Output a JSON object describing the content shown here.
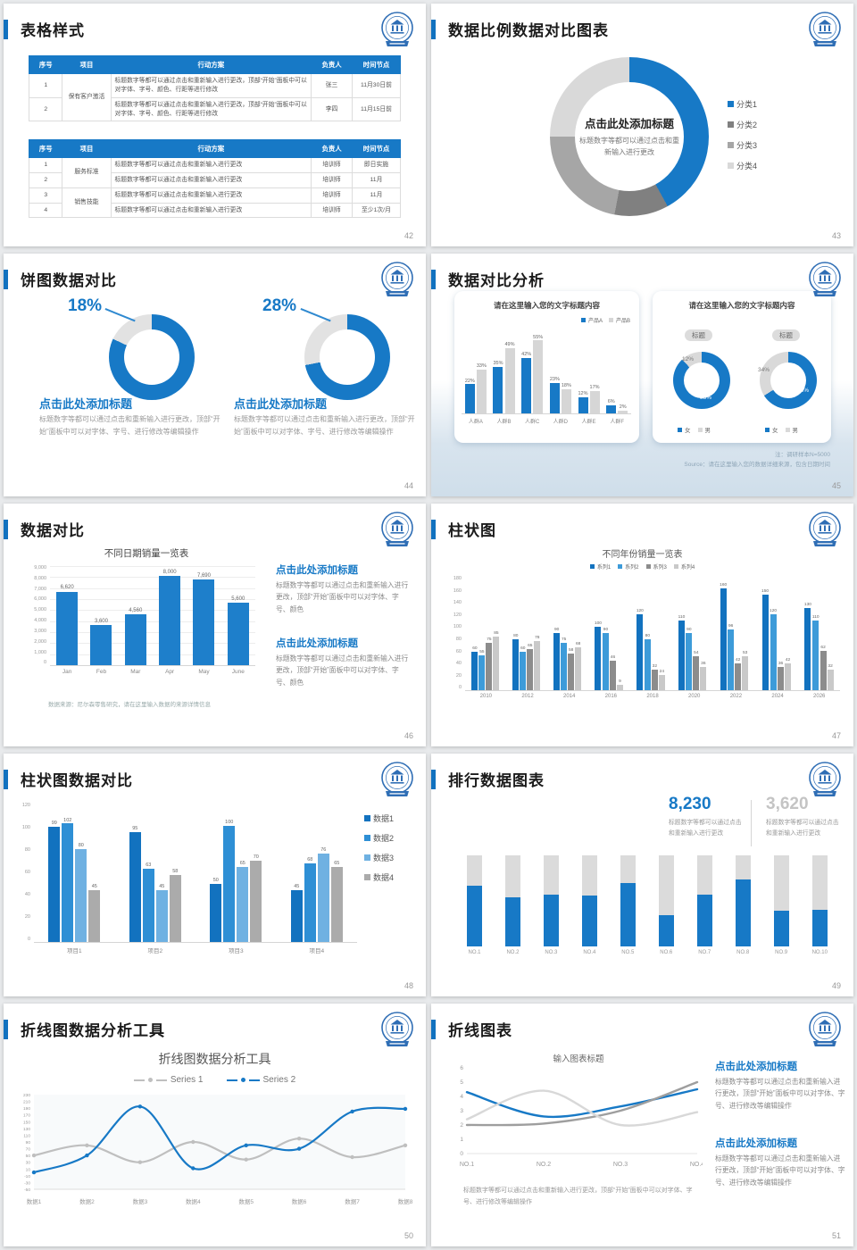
{
  "window": {
    "background": "#E8EAEC"
  },
  "colors": {
    "accent": "#1779C6",
    "blue_dark": "#1272BF",
    "blue_mid": "#2E8FD5",
    "blue_light": "#6FB1E2",
    "gray_dark": "#808080",
    "gray_mid": "#A6A6A6",
    "gray_light": "#D9D9D9",
    "stat_gray": "#C4C4C4"
  },
  "slides": {
    "s42": {
      "title": "表格样式",
      "page": "42",
      "table1": {
        "headers": [
          "序号",
          "项目",
          "行动方案",
          "负责人",
          "时间节点"
        ],
        "rows": [
          {
            "no": "1",
            "project": "保有客户激活",
            "plan": "标题数字等都可以通过点击和重新输入进行更改，顶部“开始”面板中可以对字体、字号、颜色、行距等进行修改",
            "owner": "张三",
            "time": "11月30日前"
          },
          {
            "no": "2",
            "plan": "标题数字等都可以通过点击和重新输入进行更改，顶部“开始”面板中可以对字体、字号、颜色、行距等进行修改",
            "owner": "李四",
            "time": "11月15日前"
          }
        ]
      },
      "table2": {
        "headers": [
          "序号",
          "项目",
          "行动方案",
          "负责人",
          "时间节点"
        ],
        "rows": [
          {
            "no": "1",
            "project": "服务标准",
            "plan": "标题数字等都可以通过点击和重新输入进行更改",
            "owner": "培训师",
            "time": "即日实施"
          },
          {
            "no": "2",
            "plan": "标题数字等都可以通过点击和重新输入进行更改",
            "owner": "培训师",
            "time": "11月"
          },
          {
            "no": "3",
            "project": "销售技能",
            "plan": "标题数字等都可以通过点击和重新输入进行更改",
            "owner": "培训师",
            "time": "11月"
          },
          {
            "no": "4",
            "plan": "标题数字等都可以通过点击和重新输入进行更改",
            "owner": "培训师",
            "time": "至少1次/月"
          }
        ]
      }
    },
    "s43": {
      "title": "数据比例数据对比图表",
      "page": "43"
    },
    "s44": {
      "title": "饼图数据对比",
      "page": "44",
      "left": {
        "heading": "点击此处添加标题",
        "body": "标题数字等都可以通过点击和重新输入进行更改，顶部“开始”面板中可以对字体、字号、进行修改等编辑操作"
      },
      "right": {
        "heading": "点击此处添加标题",
        "body": "标题数字等都可以通过点击和重新输入进行更改，顶部“开始”面板中可以对字体、字号、进行修改等编辑操作"
      }
    },
    "s45": {
      "title": "数据对比分析",
      "page": "45",
      "card1_title": "请在这里输入您的文字标题内容",
      "card2_title": "请在这里输入您的文字标题内容",
      "badge": "标题",
      "note1": "注：调研样本N=5000",
      "note2": "Source：请在这里输入您的数据详细来源，包含日期时间"
    },
    "s46": {
      "title": "数据对比",
      "page": "46",
      "footnote": "数据来源：尼尔森零售研究，请在这里输入数据的来源详情信息",
      "blocks": [
        {
          "heading": "点击此处添加标题",
          "body": "标题数字等都可以通过点击和重新输入进行更改，顶部“开始”面板中可以对字体、字号、颜色"
        },
        {
          "heading": "点击此处添加标题",
          "body": "标题数字等都可以通过点击和重新输入进行更改，顶部“开始”面板中可以对字体、字号、颜色"
        }
      ]
    },
    "s47": {
      "title": "柱状图",
      "page": "47"
    },
    "s48": {
      "title": "柱状图数据对比",
      "page": "48"
    },
    "s49": {
      "title": "排行数据图表",
      "page": "49",
      "stat1": {
        "value": "8,230",
        "body": "标题数字等都可以通过点击和重新输入进行更改"
      },
      "stat2": {
        "value": "3,620",
        "body": "标题数字等都可以通过点击和重新输入进行更改"
      }
    },
    "s50": {
      "title": "折线图数据分析工具",
      "page": "50",
      "chart_title": "折线图数据分析工具"
    },
    "s51": {
      "title": "折线图表",
      "page": "51",
      "bottom_note": "标题数字等都可以通过点击和重新输入进行更改，顶部“开始”面板中可以对字体、字号、进行修改等编辑操作",
      "blocks": [
        {
          "heading": "点击此处添加标题",
          "body": "标题数字等都可以通过点击和重新输入进行更改，顶部“开始”面板中可以对字体、字号、进行修改等编辑操作"
        },
        {
          "heading": "点击此处添加标题",
          "body": "标题数字等都可以通过点击和重新输入进行更改，顶部“开始”面板中可以对字体、字号、进行修改等编辑操作"
        }
      ]
    }
  },
  "chart_data": [
    {
      "id": "donut43",
      "type": "pie",
      "labels": [
        "分类1",
        "分类2",
        "分类3",
        "分类4"
      ],
      "values": [
        42,
        11,
        22,
        25
      ],
      "colors": [
        "#1779C6",
        "#808080",
        "#A6A6A6",
        "#D9D9D9"
      ],
      "legend_position": "right",
      "center_title": "点击此处添加标题",
      "center_sub": "标题数字等都可以通过点击和重新输入进行更改"
    },
    {
      "id": "donut44a",
      "type": "pie",
      "values": [
        82,
        18
      ],
      "colors": [
        "#1779C6",
        "#E2E2E2"
      ],
      "callout": "18%"
    },
    {
      "id": "donut44b",
      "type": "pie",
      "values": [
        72,
        28
      ],
      "colors": [
        "#1779C6",
        "#E2E2E2"
      ],
      "callout": "28%"
    },
    {
      "id": "bar45",
      "type": "bar",
      "title": "请在这里输入您的文字标题内容",
      "categories": [
        "人群A",
        "人群B",
        "人群C",
        "人群D",
        "人群E",
        "人群F"
      ],
      "series": [
        {
          "name": "产品A",
          "color": "#1779C6",
          "values": [
            22,
            35,
            42,
            23,
            12,
            6
          ]
        },
        {
          "name": "产品B",
          "color": "#D6D6D6",
          "values": [
            33,
            49,
            55,
            18,
            17,
            2
          ]
        }
      ],
      "unit": "%",
      "ylim": [
        0,
        62
      ]
    },
    {
      "id": "donut45a",
      "type": "pie",
      "labels": [
        "女",
        "男"
      ],
      "values": [
        88,
        12
      ],
      "colors": [
        "#1779C6",
        "#D9D9D9"
      ],
      "labels_shown": [
        "88%",
        "12%"
      ]
    },
    {
      "id": "donut45b",
      "type": "pie",
      "labels": [
        "女",
        "男"
      ],
      "values": [
        66,
        34
      ],
      "colors": [
        "#1779C6",
        "#D9D9D9"
      ],
      "labels_shown": [
        "66%",
        "34%"
      ]
    },
    {
      "id": "bar46",
      "type": "bar",
      "title": "不同日期销量一览表",
      "categories": [
        "Jan",
        "Feb",
        "Mar",
        "Apr",
        "May",
        "June"
      ],
      "values": [
        6620,
        3600,
        4560,
        8000,
        7690,
        5600
      ],
      "color": "#1E7FCB",
      "ylim": [
        0,
        9000
      ],
      "ytick_step": 1000
    },
    {
      "id": "bar47",
      "type": "bar",
      "title": "不同年份销量一览表",
      "categories": [
        "2010",
        "2012",
        "2014",
        "2016",
        "2018",
        "2020",
        "2022",
        "2024",
        "2026"
      ],
      "series": [
        {
          "name": "系列1",
          "color": "#1272BF",
          "values": [
            60,
            80,
            90,
            100,
            120,
            110,
            160,
            150,
            130
          ]
        },
        {
          "name": "系列2",
          "color": "#3D9BD9",
          "values": [
            55,
            60,
            75,
            90,
            80,
            90,
            96,
            120,
            110
          ]
        },
        {
          "name": "系列3",
          "color": "#8C8C8C",
          "values": [
            75,
            65,
            58,
            46,
            32,
            54,
            42,
            36,
            62
          ]
        },
        {
          "name": "系列4",
          "color": "#C9C9C9",
          "values": [
            85,
            78,
            68,
            9,
            24,
            36,
            53,
            42,
            32
          ]
        }
      ],
      "ylim": [
        0,
        180
      ],
      "ytick_step": 20
    },
    {
      "id": "bar48",
      "type": "bar",
      "categories": [
        "项目1",
        "项目2",
        "项目3",
        "项目4"
      ],
      "series": [
        {
          "name": "数据1",
          "color": "#1272BF",
          "values": [
            99,
            95,
            50,
            45
          ]
        },
        {
          "name": "数据2",
          "color": "#2E8FD5",
          "values": [
            102,
            63,
            100,
            68
          ]
        },
        {
          "name": "数据3",
          "color": "#6FB1E2",
          "values": [
            80,
            45,
            65,
            76
          ]
        },
        {
          "name": "数据4",
          "color": "#ABABAB",
          "values": [
            45,
            58,
            70,
            65
          ]
        }
      ],
      "ylim": [
        0,
        120
      ],
      "ytick_step": 20,
      "legend_position": "right"
    },
    {
      "id": "rank49",
      "type": "bar",
      "categories": [
        "NO.1",
        "NO.2",
        "NO.3",
        "NO.4",
        "NO.5",
        "NO.6",
        "NO.7",
        "NO.8",
        "NO.9",
        "NO.10"
      ],
      "values": [
        67,
        54,
        57,
        56,
        70,
        34,
        57,
        74,
        39,
        40
      ],
      "ylim": [
        0,
        100
      ],
      "colors": [
        "#1779C6",
        "#DBDBDB"
      ]
    },
    {
      "id": "line50",
      "type": "line",
      "title": "折线图数据分析工具",
      "categories": [
        "数据1",
        "数据2",
        "数据3",
        "数据4",
        "数据5",
        "数据6",
        "数据7",
        "数据8"
      ],
      "series": [
        {
          "name": "Series 1",
          "color": "#BFBFBF",
          "values": [
            50,
            80,
            30,
            90,
            38,
            100,
            45,
            80
          ]
        },
        {
          "name": "Series 2",
          "color": "#1779C6",
          "values": [
            0,
            50,
            195,
            12,
            80,
            70,
            180,
            188
          ]
        }
      ],
      "ylim": [
        -50,
        230
      ],
      "ytick_step": 20,
      "legend_position": "top"
    },
    {
      "id": "line51",
      "type": "line",
      "title": "输入图表标题",
      "categories": [
        "NO.1",
        "NO.2",
        "NO.3",
        "NO.4"
      ],
      "series": [
        {
          "name": "series-blue",
          "color": "#1779C6",
          "values": [
            4.3,
            2.6,
            3.3,
            4.5
          ]
        },
        {
          "name": "series-dark-gray",
          "color": "#9E9E9E",
          "values": [
            2.0,
            2.1,
            3.0,
            5.0
          ]
        },
        {
          "name": "series-light-gray",
          "color": "#D8D8D8",
          "values": [
            2.4,
            4.4,
            2.0,
            2.9
          ]
        }
      ],
      "ylim": [
        0,
        6
      ],
      "ytick_step": 1
    }
  ]
}
